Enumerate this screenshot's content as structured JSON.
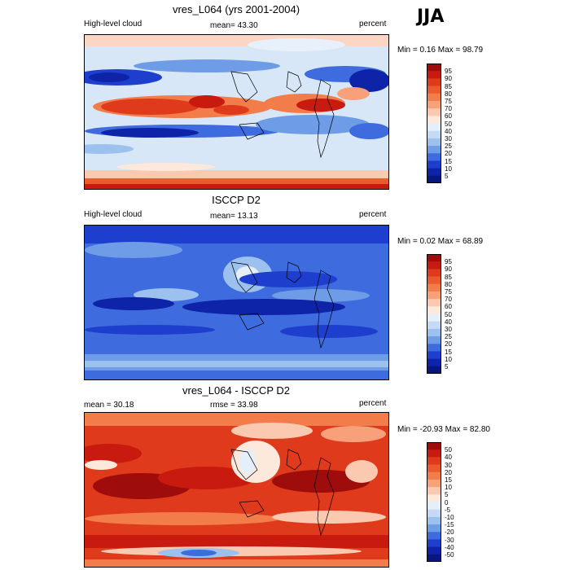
{
  "season": "JJA",
  "panels": [
    {
      "title": "vres_L064 (yrs 2001-2004)",
      "left_label": "High-level cloud",
      "center_label": "mean=  43.30",
      "right_label": "percent",
      "minmax": "Min =   0.16 Max =   98.79",
      "colorbar_ticks": [
        "95",
        "90",
        "85",
        "80",
        "75",
        "70",
        "60",
        "50",
        "40",
        "30",
        "25",
        "20",
        "15",
        "10",
        "5"
      ],
      "colorbar_colors": [
        "#9e0c0c",
        "#c81a0f",
        "#df3a1c",
        "#eb5a2e",
        "#f27c4a",
        "#f7a07a",
        "#fbc8b0",
        "#fde8dc",
        "#e4effa",
        "#c5dbf5",
        "#9cc1ef",
        "#6e9ce6",
        "#3e6bdd",
        "#1e3fcd",
        "#0d23a8",
        "#081680"
      ]
    },
    {
      "title": "ISCCP D2",
      "left_label": "High-level cloud",
      "center_label": "mean=  13.13",
      "right_label": "percent",
      "minmax": "Min =   0.02 Max =   68.89",
      "colorbar_ticks": [
        "95",
        "90",
        "85",
        "80",
        "75",
        "70",
        "60",
        "50",
        "40",
        "30",
        "25",
        "20",
        "15",
        "10",
        "5"
      ],
      "colorbar_colors": [
        "#9e0c0c",
        "#c81a0f",
        "#df3a1c",
        "#eb5a2e",
        "#f27c4a",
        "#f7a07a",
        "#fbc8b0",
        "#fde8dc",
        "#e4effa",
        "#c5dbf5",
        "#9cc1ef",
        "#6e9ce6",
        "#3e6bdd",
        "#1e3fcd",
        "#0d23a8",
        "#081680"
      ]
    },
    {
      "title": "vres_L064 - ISCCP D2",
      "left_label": "mean =  30.18",
      "center_label": "rmse =  33.98",
      "right_label": "percent",
      "minmax": "Min = -20.93 Max =   82.80",
      "colorbar_ticks": [
        "50",
        "40",
        "30",
        "20",
        "15",
        "10",
        "5",
        "0",
        "-5",
        "-10",
        "-15",
        "-20",
        "-30",
        "-40",
        "-50"
      ],
      "colorbar_colors": [
        "#9e0c0c",
        "#c81a0f",
        "#df3a1c",
        "#eb5a2e",
        "#f27c4a",
        "#f7a07a",
        "#fbc8b0",
        "#fde8dc",
        "#e4effa",
        "#c5dbf5",
        "#9cc1ef",
        "#6e9ce6",
        "#3e6bdd",
        "#1e3fcd",
        "#0d23a8",
        "#081680"
      ]
    }
  ]
}
